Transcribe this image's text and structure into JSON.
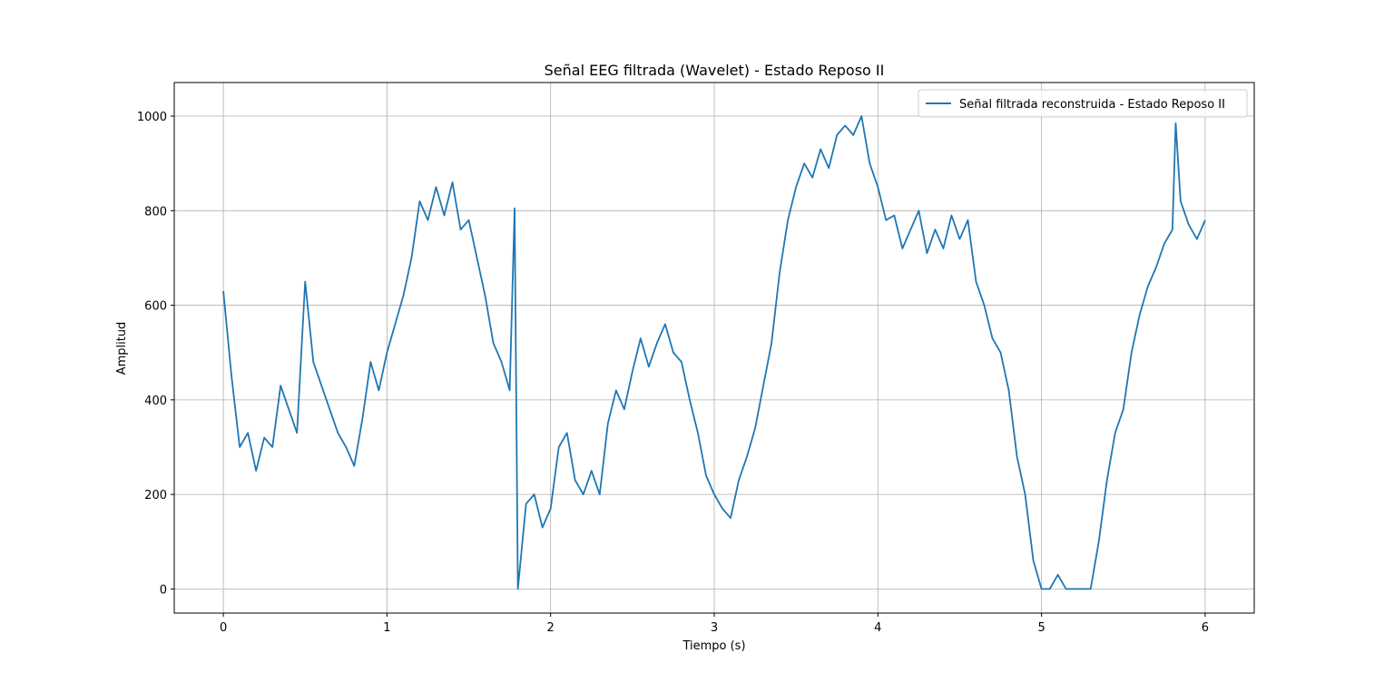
{
  "chart_data": {
    "type": "line",
    "title": "Señal EEG filtrada (Wavelet) - Estado Reposo II",
    "x_label": "Tiempo (s)",
    "y_label": "Amplitud",
    "x": [
      0,
      0.05,
      0.1,
      0.15,
      0.2,
      0.25,
      0.3,
      0.35,
      0.4,
      0.45,
      0.5,
      0.55,
      0.6,
      0.65,
      0.7,
      0.75,
      0.8,
      0.85,
      0.9,
      0.95,
      1.0,
      1.05,
      1.1,
      1.15,
      1.2,
      1.25,
      1.3,
      1.35,
      1.4,
      1.45,
      1.5,
      1.55,
      1.6,
      1.65,
      1.7,
      1.75,
      1.78,
      1.8,
      1.85,
      1.9,
      1.95,
      2.0,
      2.05,
      2.1,
      2.15,
      2.2,
      2.25,
      2.3,
      2.35,
      2.4,
      2.45,
      2.5,
      2.55,
      2.6,
      2.65,
      2.7,
      2.75,
      2.8,
      2.85,
      2.9,
      2.95,
      3.0,
      3.05,
      3.1,
      3.15,
      3.2,
      3.25,
      3.3,
      3.35,
      3.4,
      3.45,
      3.5,
      3.55,
      3.6,
      3.65,
      3.7,
      3.75,
      3.8,
      3.85,
      3.9,
      3.95,
      4.0,
      4.05,
      4.1,
      4.15,
      4.2,
      4.25,
      4.3,
      4.35,
      4.4,
      4.45,
      4.5,
      4.55,
      4.6,
      4.65,
      4.7,
      4.75,
      4.8,
      4.85,
      4.9,
      4.95,
      5.0,
      5.05,
      5.1,
      5.15,
      5.2,
      5.25,
      5.3,
      5.35,
      5.4,
      5.45,
      5.5,
      5.55,
      5.6,
      5.65,
      5.7,
      5.75,
      5.8,
      5.82,
      5.85,
      5.9,
      5.95,
      6.0
    ],
    "series": [
      {
        "name": "Señal filtrada reconstruida - Estado Reposo II",
        "color": "#1f77b4",
        "values": [
          630,
          450,
          300,
          330,
          250,
          320,
          300,
          430,
          380,
          330,
          650,
          480,
          430,
          380,
          330,
          300,
          260,
          360,
          480,
          420,
          500,
          560,
          620,
          700,
          820,
          780,
          850,
          790,
          860,
          760,
          780,
          700,
          620,
          520,
          480,
          420,
          805,
          0,
          180,
          200,
          130,
          170,
          300,
          330,
          230,
          200,
          250,
          200,
          350,
          420,
          380,
          460,
          530,
          470,
          520,
          560,
          500,
          480,
          400,
          330,
          240,
          200,
          170,
          150,
          230,
          280,
          340,
          430,
          520,
          670,
          780,
          850,
          900,
          870,
          930,
          890,
          960,
          980,
          960,
          1000,
          900,
          850,
          780,
          790,
          720,
          760,
          800,
          710,
          760,
          720,
          790,
          740,
          780,
          650,
          600,
          530,
          500,
          420,
          280,
          200,
          60,
          0,
          0,
          30,
          0,
          0,
          0,
          0,
          100,
          230,
          330,
          380,
          500,
          580,
          640,
          680,
          730,
          760,
          985,
          820,
          770,
          740,
          780
        ]
      }
    ],
    "xlim": [
      -0.3,
      6.3
    ],
    "ylim": [
      -51,
      1071
    ],
    "xticks": [
      0,
      1,
      2,
      3,
      4,
      5,
      6
    ],
    "yticks": [
      0,
      200,
      400,
      600,
      800,
      1000
    ],
    "grid": true,
    "legend": "upper right"
  }
}
